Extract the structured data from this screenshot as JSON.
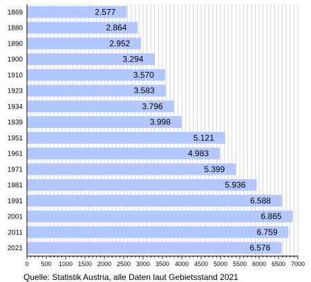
{
  "chart_data": {
    "type": "bar",
    "orientation": "horizontal",
    "categories": [
      "1869",
      "1880",
      "1890",
      "1900",
      "1910",
      "1923",
      "1934",
      "1939",
      "1951",
      "1961",
      "1971",
      "1981",
      "1991",
      "2001",
      "2011",
      "2021"
    ],
    "values": [
      2577,
      2864,
      2952,
      3294,
      3570,
      3583,
      3796,
      3998,
      5121,
      4983,
      5399,
      5936,
      6588,
      6865,
      6759,
      6576
    ],
    "value_labels": [
      "2.577",
      "2.864",
      "2.952",
      "3.294",
      "3.570",
      "3.583",
      "3.796",
      "3.998",
      "5.121",
      "4.983",
      "5.399",
      "5.936",
      "6.588",
      "6.865",
      "6.759",
      "6.576"
    ],
    "xlim": [
      0,
      7000
    ],
    "x_ticks": [
      0,
      500,
      1000,
      1500,
      2000,
      2500,
      3000,
      3500,
      4000,
      4500,
      5000,
      5500,
      6000,
      6500,
      7000
    ],
    "grid": "vertical lines every 100",
    "bar_color": "#b3c8ff",
    "grid_color": "#bbbbbb",
    "title": "",
    "xlabel": "",
    "ylabel": "",
    "source": "Quelle: Statistik Austria, alle Daten laut Gebietsstand 2021"
  }
}
